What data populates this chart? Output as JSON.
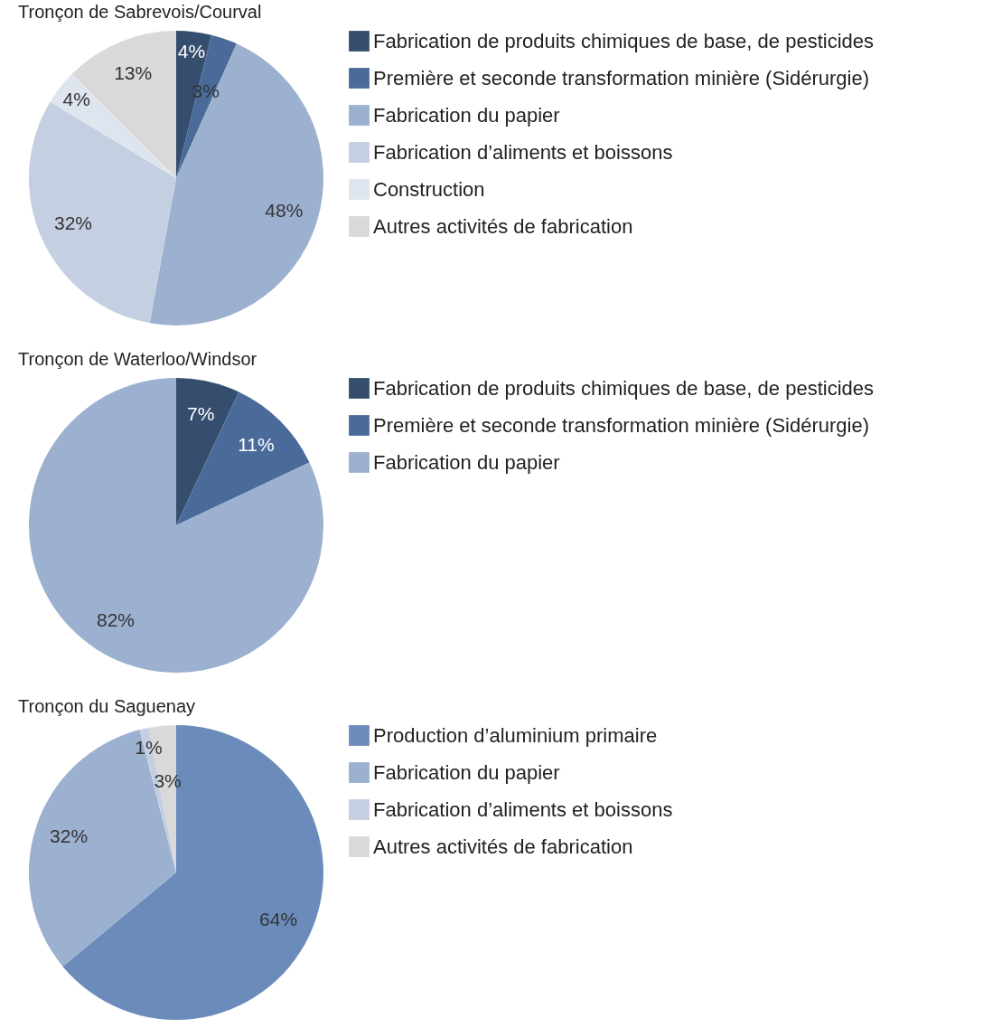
{
  "chart_data": [
    {
      "type": "pie",
      "title": "Tronçon de Sabrevois/Courval",
      "categories": [
        "Fabrication de produits chimiques de base, de pesticides",
        "Première et seconde transformation minière (Sidérurgie)",
        "Fabrication du papier",
        "Fabrication d’aliments et boissons",
        "Construction",
        "Autres activités de fabrication"
      ],
      "values": [
        4,
        3,
        48,
        32,
        4,
        13
      ],
      "value_labels": [
        "4%",
        "3%",
        "48%",
        "32%",
        "4%",
        "13%"
      ],
      "colors": [
        "#364e6e",
        "#4a6b9a",
        "#9cb0cf",
        "#c4cfe1",
        "#dfe5ef",
        "#d9d9d9"
      ],
      "legend": "right"
    },
    {
      "type": "pie",
      "title": "Tronçon de Waterloo/Windsor",
      "categories": [
        "Fabrication de produits chimiques de base, de pesticides",
        "Première et seconde transformation minière (Sidérurgie)",
        "Fabrication du papier"
      ],
      "values": [
        7,
        11,
        82
      ],
      "value_labels": [
        "7%",
        "11%",
        "82%"
      ],
      "colors": [
        "#364e6e",
        "#4a6b9a",
        "#9cb0cf"
      ],
      "legend": "right"
    },
    {
      "type": "pie",
      "title": "Tronçon du Saguenay",
      "categories": [
        "Production d’aluminium primaire",
        "Fabrication du papier",
        "Fabrication d’aliments et boissons",
        "Autres activités de fabrication"
      ],
      "values": [
        64,
        32,
        1,
        3
      ],
      "value_labels": [
        "64%",
        "32%",
        "1%",
        "3%"
      ],
      "colors": [
        "#6b8cba",
        "#9cb0cf",
        "#c4cfe1",
        "#d9d9d9"
      ],
      "legend": "right"
    }
  ]
}
